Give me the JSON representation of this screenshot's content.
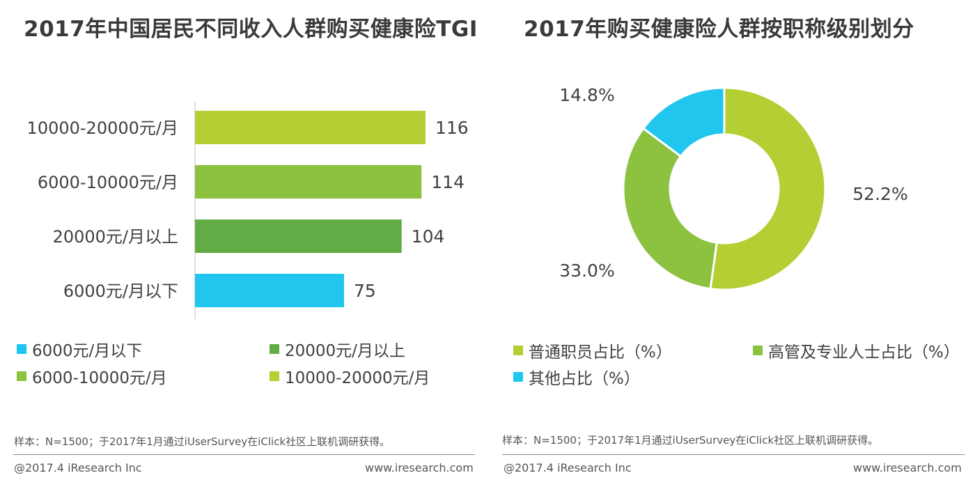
{
  "titles": {
    "left": "2017年中国居民不同收入人群购买健康险TGI",
    "right": "2017年购买健康险人群按职称级别划分"
  },
  "chart_data": [
    {
      "type": "bar",
      "orientation": "horizontal",
      "categories": [
        "10000-20000元/月",
        "6000-10000元/月",
        "20000元/月以上",
        "6000元/月以下"
      ],
      "values": [
        116,
        114,
        104,
        75
      ],
      "colors": [
        "#b3cf33",
        "#8cc23f",
        "#62ac45",
        "#21c6ef"
      ],
      "value_labels": [
        "116",
        "114",
        "104",
        "75"
      ],
      "xlim": [
        0,
        140
      ],
      "grid": false,
      "legend": {
        "placement": "bottom",
        "entries": [
          {
            "label": "6000元/月以下",
            "color": "#21c6ef"
          },
          {
            "label": "20000元/月以上",
            "color": "#62ac45"
          },
          {
            "label": "6000-10000元/月",
            "color": "#8cc23f"
          },
          {
            "label": "10000-20000元/月",
            "color": "#b3cf33"
          }
        ]
      }
    },
    {
      "type": "pie",
      "donut": true,
      "slices": [
        {
          "label": "普通职员占比（%）",
          "value": 52.2,
          "value_label": "52.2%",
          "color": "#b3cf33"
        },
        {
          "label": "高管及专业人士占比（%）",
          "value": 33.0,
          "value_label": "33.0%",
          "color": "#8cc23f"
        },
        {
          "label": "其他占比（%）",
          "value": 14.8,
          "value_label": "14.8%",
          "color": "#21c6ef"
        }
      ],
      "legend": {
        "placement": "bottom"
      }
    }
  ],
  "footnotes": {
    "left_note": "样本：N=1500；于2017年1月通过iUserSurvey在iClick社区上联机调研获得。",
    "right_note": "样本：N=1500；于2017年1月通过iUserSurvey在iClick社区上联机调研获得。",
    "copyright_left": "@2017.4 iResearch Inc",
    "url_left": "www.iresearch.com",
    "copyright_right": "@2017.4 iResearch Inc",
    "url_right": "www.iresearch.com"
  }
}
